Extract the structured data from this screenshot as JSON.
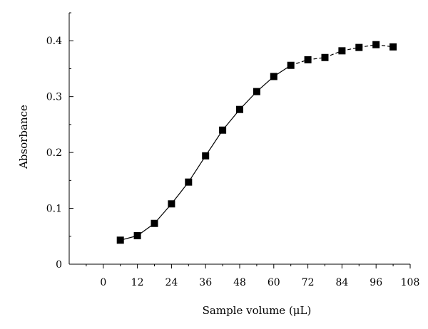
{
  "chart_data": {
    "type": "line",
    "title": "",
    "xlabel": "Sample volume (μL)",
    "ylabel": "Absorbance",
    "xlim": [
      -12,
      108
    ],
    "ylim": [
      0,
      0.45
    ],
    "x_ticks": [
      0,
      12,
      24,
      36,
      48,
      60,
      72,
      84,
      96,
      108
    ],
    "x_tick_labels": [
      "0",
      "12",
      "24",
      "36",
      "48",
      "60",
      "72",
      "84",
      "96",
      "108"
    ],
    "y_ticks": [
      0,
      0.1,
      0.2,
      0.3,
      0.4
    ],
    "y_tick_labels": [
      "0",
      "0.1",
      "0.2",
      "0.3",
      "0.4"
    ],
    "grid": false,
    "legend": "none",
    "marker": "filled-square",
    "series": [
      {
        "x": [
          6,
          12,
          18,
          24,
          30,
          36,
          42,
          48,
          54,
          60,
          66,
          72,
          78,
          84,
          90,
          96,
          102
        ],
        "y": [
          0.043,
          0.051,
          0.073,
          0.108,
          0.147,
          0.194,
          0.24,
          0.277,
          0.309,
          0.336,
          0.356,
          0.366,
          0.37,
          0.382,
          0.388,
          0.393,
          0.389
        ],
        "line_style": "solid-then-dashed",
        "dashed_from_x": 66
      }
    ],
    "colors": {
      "line": "#000000",
      "marker": "#000000"
    }
  }
}
